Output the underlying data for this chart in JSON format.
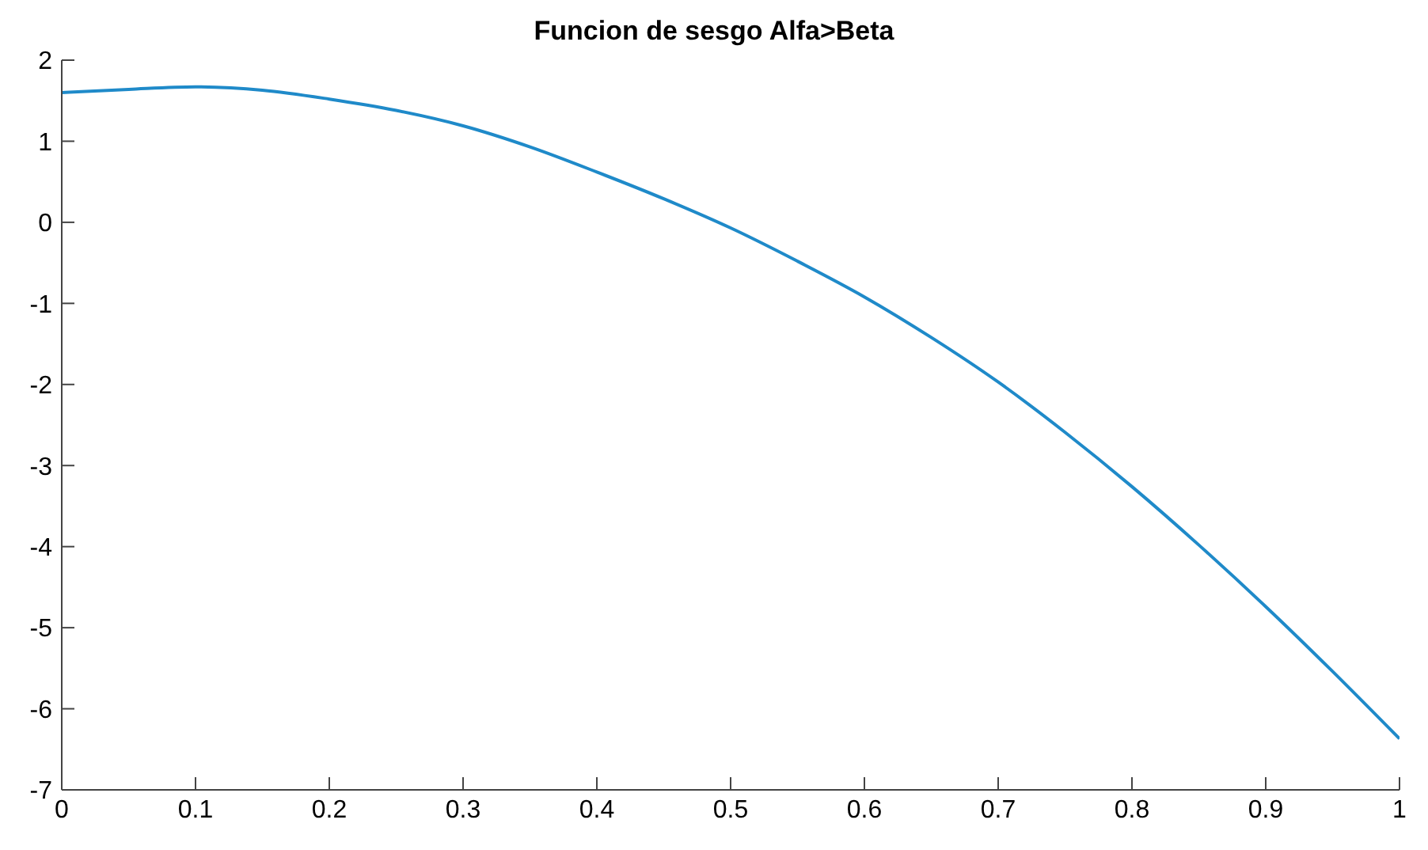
{
  "chart_data": {
    "type": "line",
    "title": "Funcion de sesgo Alfa>Beta",
    "x": [
      0,
      0.05,
      0.1,
      0.15,
      0.2,
      0.25,
      0.3,
      0.35,
      0.4,
      0.45,
      0.5,
      0.55,
      0.6,
      0.65,
      0.7,
      0.75,
      0.8,
      0.85,
      0.9,
      0.95,
      1
    ],
    "series": [
      {
        "color": "#1f8ac9",
        "values": [
          1.6,
          1.64,
          1.67,
          1.63,
          1.52,
          1.38,
          1.19,
          0.93,
          0.62,
          0.29,
          -0.07,
          -0.48,
          -0.92,
          -1.42,
          -1.97,
          -2.59,
          -3.26,
          -3.98,
          -4.74,
          -5.54,
          -6.37
        ]
      }
    ],
    "xlim": [
      0,
      1
    ],
    "xticks": [
      0,
      0.1,
      0.2,
      0.3,
      0.4,
      0.5,
      0.6,
      0.7,
      0.8,
      0.9,
      1
    ],
    "ylim": [
      -7,
      2
    ],
    "yticks": [
      -7,
      -6,
      -5,
      -4,
      -3,
      -2,
      -1,
      0,
      1,
      2
    ],
    "marker": "none",
    "line_style": "solid"
  }
}
